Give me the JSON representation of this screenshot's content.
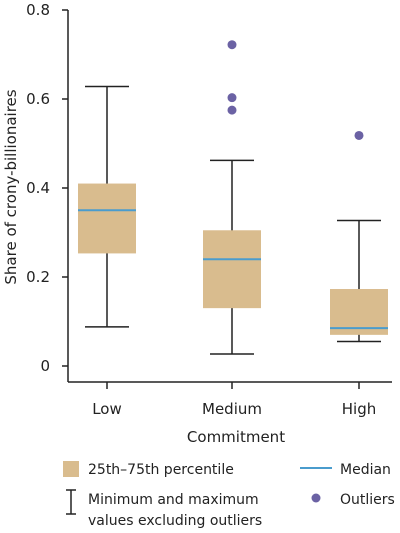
{
  "chart_data": {
    "type": "boxplot",
    "xlabel": "Commitment",
    "ylabel": "Share of crony-billionaires",
    "ylim": [
      0,
      0.8
    ],
    "yticks": [
      "0",
      "0.2",
      "0.4",
      "0.6",
      "0.8"
    ],
    "yticks_values": [
      0,
      0.2,
      0.4,
      0.6,
      0.8
    ],
    "categories": [
      "Low",
      "Medium",
      "High"
    ],
    "boxes": [
      {
        "category": "Low",
        "min": 0.088,
        "q1": 0.253,
        "median": 0.35,
        "q3": 0.41,
        "max": 0.628,
        "outliers": []
      },
      {
        "category": "Medium",
        "min": 0.027,
        "q1": 0.13,
        "median": 0.24,
        "q3": 0.305,
        "max": 0.462,
        "outliers": [
          0.575,
          0.603,
          0.722
        ]
      },
      {
        "category": "High",
        "min": 0.055,
        "q1": 0.07,
        "median": 0.085,
        "q3": 0.173,
        "max": 0.327,
        "outliers": [
          0.518
        ]
      }
    ],
    "legend": {
      "box": "25th–75th percentile",
      "median": "Median",
      "whisker": [
        "Minimum and maximum",
        "values excluding outliers"
      ],
      "outliers": "Outliers"
    },
    "colors": {
      "box": "#d9bc8e",
      "median": "#4a9ccd",
      "outlier": "#6b62a4",
      "axis": "#222222"
    }
  }
}
